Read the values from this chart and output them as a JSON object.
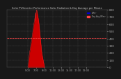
{
  "title": "Solar PV/Inverter Performance Solar Radiation & Day Average per Minute",
  "bg_color": "#181818",
  "plot_bg_color": "#1a1a1a",
  "grid_color": "#555555",
  "area_color": "#cc0000",
  "area_edge_color": "#ff2222",
  "line_color": "#0000ff",
  "avg_color": "#ff4444",
  "ylim": [
    0,
    800
  ],
  "xlim": [
    0,
    1439
  ],
  "yticks": [
    0,
    100,
    200,
    300,
    400,
    500,
    600,
    700,
    800
  ],
  "xtick_labels": [
    "5:00",
    "7:00",
    "9:00",
    "11:00",
    "13:00",
    "15:00",
    "17:00",
    "19:00"
  ],
  "xtick_positions": [
    300,
    420,
    540,
    660,
    780,
    900,
    1020,
    1140
  ],
  "title_color": "#cccccc",
  "tick_color": "#aaaaaa",
  "legend_labels": [
    "W/m²",
    "Day Avg W/m²"
  ],
  "legend_colors": [
    "#0000cc",
    "#ff4444"
  ],
  "data_points": [
    0,
    0,
    0,
    0,
    0,
    0,
    0,
    0,
    0,
    0,
    0,
    0,
    0,
    0,
    0,
    0,
    0,
    0,
    0,
    0,
    0,
    0,
    0,
    0,
    0,
    0,
    0,
    0,
    0,
    0,
    0,
    0,
    0,
    0,
    0,
    0,
    0,
    0,
    0,
    0,
    0,
    0,
    0,
    0,
    0,
    0,
    0,
    0,
    0,
    0,
    0,
    0,
    0,
    0,
    0,
    0,
    0,
    0,
    0,
    0,
    0,
    0,
    0,
    0,
    0,
    0,
    0,
    0,
    0,
    0,
    0,
    0,
    0,
    0,
    0,
    0,
    0,
    0,
    0,
    0,
    0,
    0,
    0,
    0,
    0,
    0,
    0,
    0,
    0,
    0,
    0,
    0,
    0,
    0,
    0,
    0,
    0,
    0,
    0,
    0,
    0,
    0,
    0,
    0,
    0,
    0,
    0,
    0,
    0,
    0,
    0,
    0,
    0,
    0,
    0,
    0,
    0,
    0,
    0,
    0,
    0,
    0,
    0,
    0,
    0,
    0,
    0,
    0,
    0,
    0,
    0,
    0,
    0,
    0,
    0,
    0,
    0,
    0,
    0,
    0,
    0,
    0,
    0,
    0,
    0,
    0,
    0,
    0,
    0,
    0,
    0,
    0,
    0,
    0,
    0,
    0,
    0,
    0,
    0,
    0,
    0,
    0,
    0,
    0,
    0,
    0,
    0,
    0,
    0,
    0,
    0,
    0,
    0,
    0,
    0,
    0,
    0,
    0,
    0,
    0,
    0,
    0,
    0,
    0,
    0,
    0,
    0,
    0,
    0,
    0,
    0,
    0,
    0,
    0,
    0,
    0,
    0,
    0,
    0,
    0,
    0,
    0,
    0,
    0,
    0,
    0,
    0,
    0,
    0,
    0,
    0,
    0,
    0,
    0,
    0,
    0,
    0,
    0,
    0,
    0,
    0,
    0,
    0,
    0,
    0,
    0,
    0,
    0,
    0,
    0,
    0,
    0,
    0,
    0,
    0,
    0,
    0,
    0,
    0,
    0,
    0,
    0,
    0,
    0,
    0,
    0,
    0,
    0,
    0,
    0,
    0,
    0,
    0,
    0,
    0,
    0,
    0,
    0,
    0,
    0,
    0,
    0,
    0,
    0,
    0,
    0,
    0,
    0,
    0,
    0,
    0,
    0,
    0,
    0,
    0,
    0,
    0,
    0,
    0,
    0,
    0,
    0,
    0,
    0,
    0,
    0,
    0,
    0,
    0,
    0,
    0,
    0,
    0,
    0,
    0,
    0,
    0,
    0,
    0,
    0,
    5,
    8,
    10,
    15,
    20,
    30,
    40,
    50,
    55,
    60,
    70,
    80,
    90,
    100,
    110,
    120,
    130,
    140,
    150,
    160,
    170,
    175,
    180,
    190,
    195,
    200,
    210,
    215,
    220,
    225,
    230,
    235,
    240,
    250,
    255,
    260,
    265,
    270,
    280,
    285,
    290,
    295,
    300,
    310,
    315,
    320,
    330,
    335,
    340,
    345,
    350,
    360,
    365,
    370,
    380,
    385,
    390,
    400,
    405,
    410,
    420,
    425,
    430,
    440,
    445,
    450,
    460,
    465,
    470,
    480,
    485,
    490,
    500,
    510,
    515,
    520,
    530,
    535,
    540,
    550,
    555,
    560,
    570,
    575,
    580,
    590,
    595,
    600,
    610,
    615,
    620,
    625,
    630,
    640,
    645,
    650,
    655,
    660,
    665,
    670,
    680,
    685,
    690,
    695,
    700,
    705,
    710,
    715,
    720,
    725,
    730,
    735,
    740,
    745,
    750,
    755,
    760,
    650,
    720,
    740,
    750,
    760,
    770,
    775,
    780,
    785,
    790,
    795,
    800,
    790,
    785,
    780,
    775,
    770,
    765,
    760,
    755,
    750,
    745,
    740,
    735,
    730,
    725,
    720,
    715,
    710,
    700,
    695,
    690,
    685,
    680,
    670,
    665,
    660,
    655,
    645,
    640,
    635,
    625,
    620,
    610,
    600,
    590,
    580,
    570,
    560,
    550,
    540,
    530,
    520,
    510,
    500,
    490,
    480,
    470,
    460,
    450,
    440,
    430,
    420,
    410,
    400,
    390,
    380,
    370,
    360,
    350,
    340,
    330,
    320,
    310,
    300,
    290,
    280,
    270,
    260,
    250,
    240,
    230,
    220,
    210,
    200,
    195,
    190,
    185,
    180,
    175,
    170,
    165,
    160,
    155,
    150,
    145,
    140,
    135,
    130,
    125,
    120,
    115,
    110,
    105,
    100,
    95,
    90,
    85,
    80,
    75,
    70,
    65,
    60,
    55,
    50,
    45,
    40,
    35,
    30,
    25,
    20,
    15,
    10,
    5,
    3,
    2,
    1,
    0,
    0,
    0,
    0,
    0,
    0,
    0,
    0,
    0,
    0,
    0,
    0,
    0,
    0,
    0,
    0,
    0,
    0,
    0,
    0,
    0,
    0,
    0,
    0,
    0,
    0,
    0,
    0,
    0,
    0,
    0,
    0,
    0,
    0,
    0,
    0,
    0,
    0,
    0,
    0,
    0,
    0,
    0,
    0,
    0,
    0,
    0,
    0,
    0,
    0,
    0,
    0,
    0,
    0,
    0,
    0,
    0,
    0,
    0,
    0,
    0,
    0,
    0,
    0,
    0,
    0,
    0,
    0,
    0,
    0,
    0,
    0,
    0,
    0,
    0,
    0,
    0,
    0,
    0,
    0,
    0,
    0,
    0,
    0,
    0,
    0,
    0,
    0,
    0,
    0,
    0,
    0,
    0,
    0,
    0,
    0,
    0,
    0,
    0,
    0,
    0,
    0,
    0,
    0,
    0,
    0,
    0,
    0,
    0,
    0,
    0,
    0,
    0,
    0,
    0,
    0,
    0,
    0,
    0,
    0,
    0,
    0,
    0,
    0,
    0,
    0,
    0,
    0,
    0,
    0,
    0,
    0,
    0,
    0,
    0,
    0,
    0,
    0,
    0,
    0,
    0,
    0,
    0,
    0,
    0,
    0,
    0,
    0,
    0,
    0,
    0,
    0,
    0,
    0,
    0,
    0,
    0,
    0,
    0,
    0,
    0,
    0,
    0,
    0,
    0,
    0,
    0,
    0,
    0,
    0,
    0,
    0,
    0,
    0,
    0
  ]
}
